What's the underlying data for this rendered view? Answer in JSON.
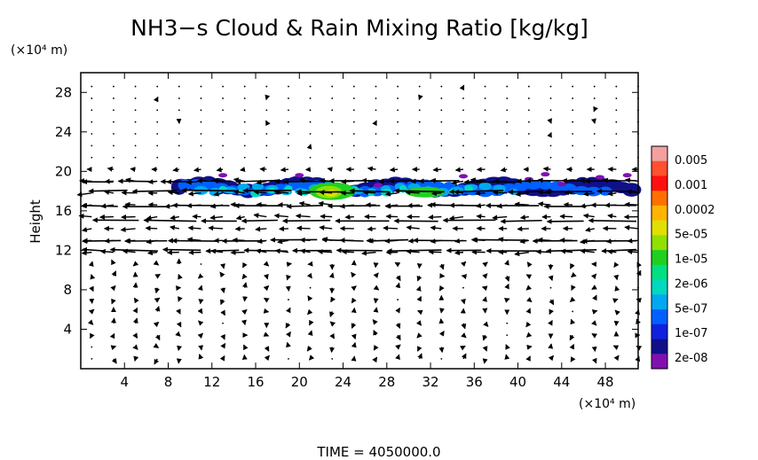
{
  "chart_data": {
    "type": "heatmap",
    "title": "NH3−s Cloud & Rain Mixing Ratio [kg/kg]",
    "ylabel": "Height",
    "x_unit": "(×10⁴ m)",
    "y_unit": "(×10⁴ m)",
    "xlim": [
      0,
      51
    ],
    "ylim": [
      0,
      30
    ],
    "x_ticks": [
      4,
      8,
      12,
      16,
      20,
      24,
      28,
      32,
      36,
      40,
      44,
      48
    ],
    "y_ticks": [
      4,
      8,
      12,
      16,
      20,
      24,
      28
    ],
    "colorbar": {
      "labels": [
        "0.005",
        "0.001",
        "0.0002",
        "5e-05",
        "1e-05",
        "2e-06",
        "5e-07",
        "1e-07",
        "2e-08"
      ],
      "colors": [
        "#f4a0a0",
        "#ff5030",
        "#ff1010",
        "#ff7000",
        "#ffb400",
        "#e0e000",
        "#90e000",
        "#20d020",
        "#00e080",
        "#00d8c0",
        "#00a8f0",
        "#0060ff",
        "#1020e0",
        "#10108a",
        "#8010b0"
      ]
    },
    "cloud_layer": {
      "height_range": [
        17,
        19.8
      ],
      "x_range": [
        8,
        51
      ],
      "max_region_x": [
        21,
        25
      ],
      "max_value_label": "5e-05"
    },
    "wind_jets": [
      {
        "height": 19,
        "direction": "westward",
        "x_range": [
          0,
          51
        ]
      },
      {
        "height": 18,
        "direction": "westward",
        "x_range": [
          0,
          51
        ]
      },
      {
        "height": 16.5,
        "direction": "westward",
        "x_range": [
          0,
          51
        ]
      },
      {
        "height": 15,
        "direction": "westward",
        "x_range": [
          0,
          51
        ]
      },
      {
        "height": 13,
        "direction": "westward",
        "x_range": [
          0,
          51
        ]
      },
      {
        "height": 12,
        "direction": "westward",
        "x_range": [
          0,
          51
        ]
      }
    ]
  },
  "footer": {
    "time_label": "TIME  =  4050000.0"
  }
}
